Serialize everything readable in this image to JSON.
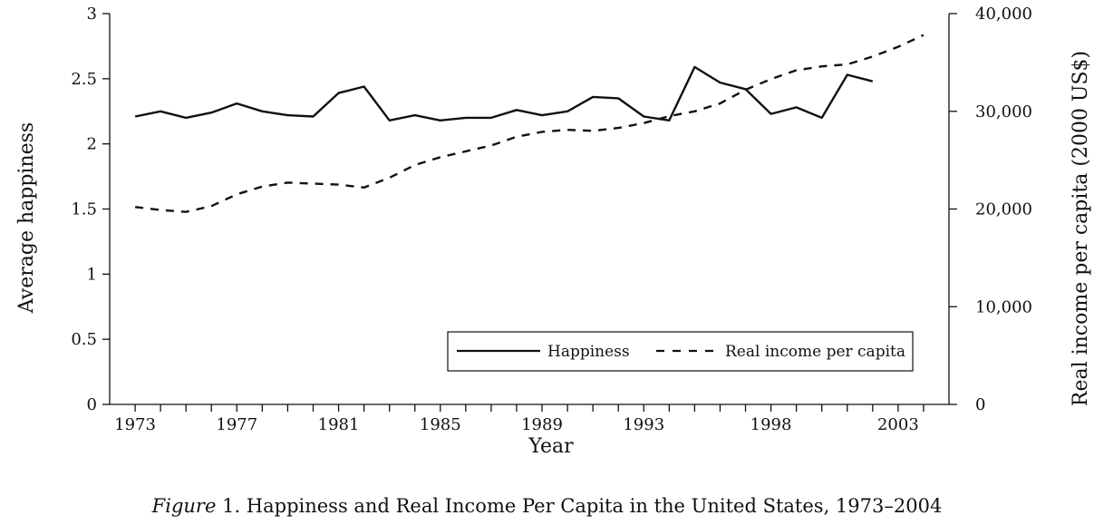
{
  "chart_data": {
    "type": "line",
    "caption_prefix": "Figure",
    "caption_text": " 1. Happiness and Real Income Per Capita in the United States, 1973–2004",
    "xlabel": "Year",
    "ylabel": "Average happiness",
    "y2label": "Real income per capita (2000 US$)",
    "xlim": [
      1972,
      2005
    ],
    "ylim": [
      0,
      3
    ],
    "y2lim": [
      0,
      40000
    ],
    "x_tick_labels": [
      "1973",
      "1977",
      "1981",
      "1985",
      "1989",
      "1993",
      "1998",
      "2003"
    ],
    "x_tick_values": [
      1973,
      1977,
      1981,
      1985,
      1989,
      1993,
      1998,
      2003
    ],
    "y_tick_labels": [
      "0",
      "0.5",
      "1",
      "1.5",
      "2",
      "2.5",
      "3"
    ],
    "y2_tick_labels": [
      "0",
      "10,000",
      "20,000",
      "30,000",
      "40,000"
    ],
    "legend_position": "lower-right",
    "series": [
      {
        "name": "Happiness",
        "axis": "left",
        "style": "solid",
        "x": [
          1973,
          1974,
          1975,
          1976,
          1977,
          1978,
          1979,
          1980,
          1981,
          1982,
          1983,
          1984,
          1985,
          1986,
          1987,
          1988,
          1989,
          1990,
          1991,
          1992,
          1993,
          1994,
          1995,
          1996,
          1997,
          1998,
          1999,
          2000,
          2001,
          2002,
          2003,
          2004
        ],
        "values": [
          2.21,
          2.25,
          2.2,
          2.24,
          2.31,
          2.25,
          2.22,
          2.21,
          2.39,
          2.44,
          2.18,
          2.22,
          2.18,
          2.2,
          2.2,
          2.26,
          2.22,
          2.25,
          2.36,
          2.35,
          2.21,
          2.18,
          2.59,
          2.47,
          2.42,
          2.23,
          2.28,
          2.2,
          2.53,
          2.48,
          null,
          null
        ]
      },
      {
        "name": "Real income per capita",
        "axis": "right",
        "style": "dashed",
        "x": [
          1973,
          1974,
          1975,
          1976,
          1977,
          1978,
          1979,
          1980,
          1981,
          1982,
          1983,
          1984,
          1985,
          1986,
          1987,
          1988,
          1989,
          1990,
          1991,
          1992,
          1993,
          1994,
          1995,
          1996,
          1997,
          1998,
          1999,
          2000,
          2001,
          2002,
          2003,
          2004
        ],
        "values": [
          20200,
          19900,
          19700,
          20300,
          21500,
          22300,
          22700,
          22600,
          22500,
          22200,
          23200,
          24500,
          25300,
          25900,
          26500,
          27400,
          27900,
          28100,
          28000,
          28300,
          28800,
          29500,
          30000,
          30800,
          32200,
          33300,
          34200,
          34600,
          34800,
          35600,
          36600,
          37800
        ]
      }
    ]
  }
}
